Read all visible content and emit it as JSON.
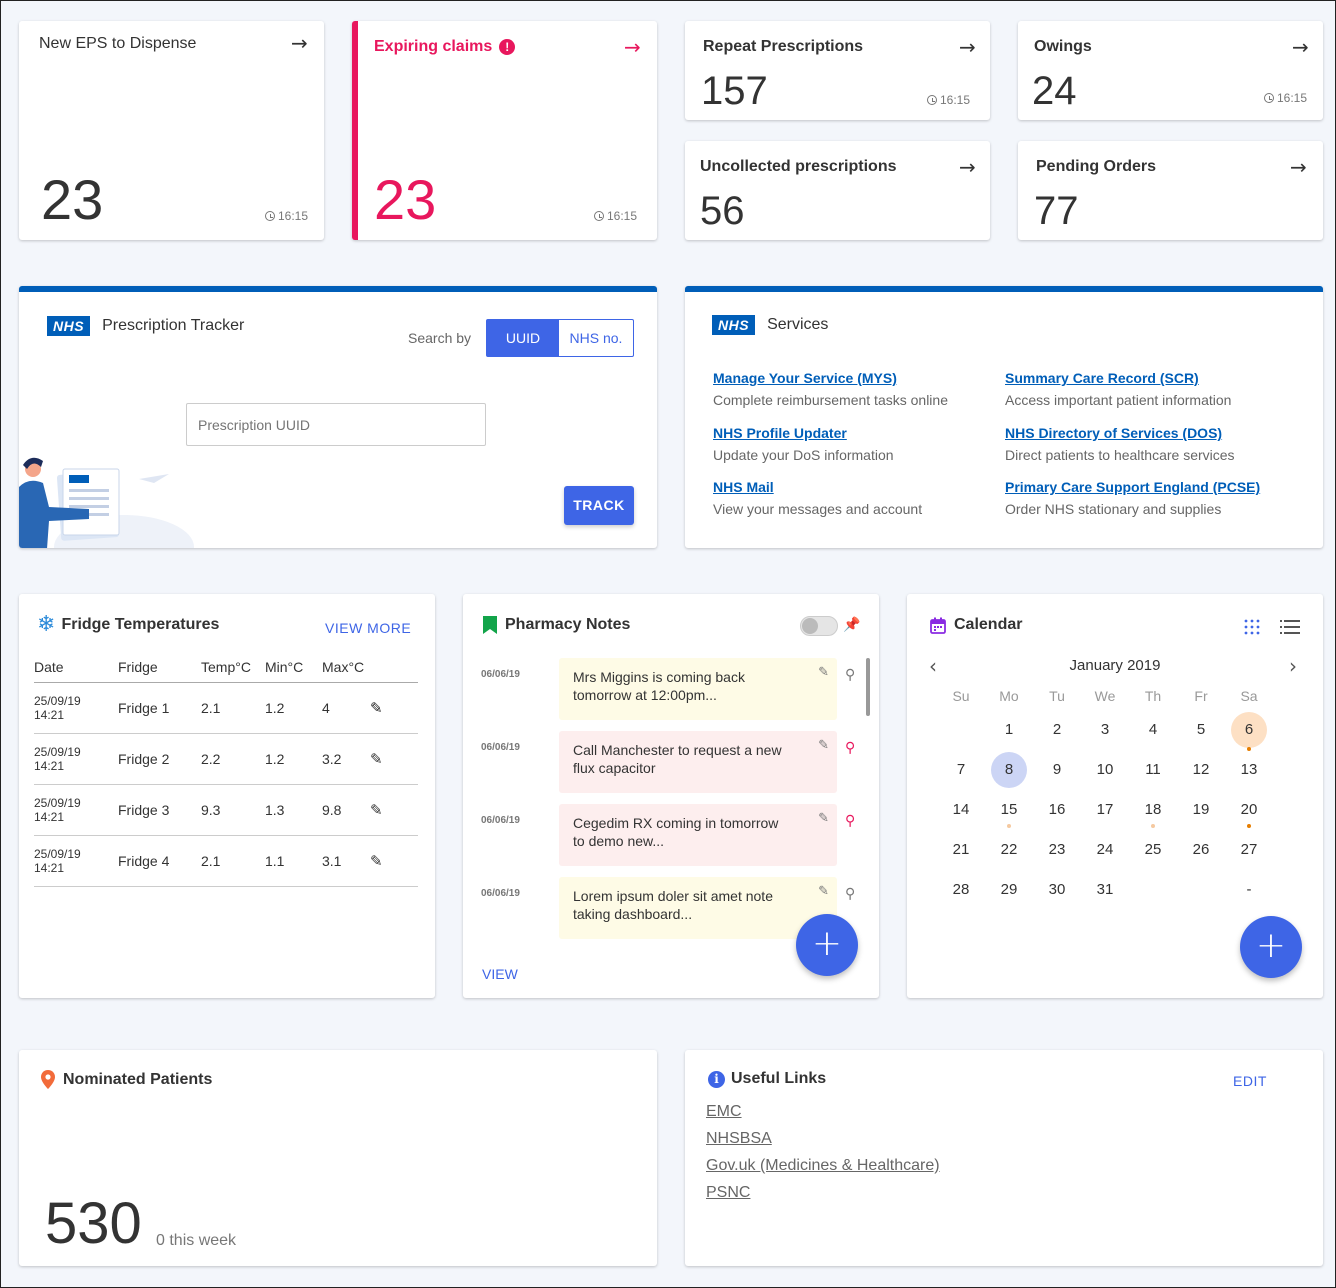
{
  "stats": {
    "eps": {
      "title": "New EPS to Dispense",
      "value": "23",
      "time": "16:15"
    },
    "expiring": {
      "title": "Expiring claims",
      "value": "23",
      "time": "16:15"
    },
    "repeat": {
      "title": "Repeat Prescriptions",
      "value": "157",
      "time": "16:15"
    },
    "owings": {
      "title": "Owings",
      "value": "24",
      "time": "16:15"
    },
    "uncollected": {
      "title": "Uncollected prescriptions",
      "value": "56"
    },
    "pending": {
      "title": "Pending Orders",
      "value": "77"
    }
  },
  "tracker": {
    "logo": "NHS",
    "title": "Prescription Tracker",
    "search_by": "Search by",
    "toggle": [
      "UUID",
      "NHS no."
    ],
    "placeholder": "Prescription UUID",
    "track_label": "TRACK"
  },
  "services": {
    "logo": "NHS",
    "title": "Services",
    "items": [
      {
        "link": "Manage Your Service (MYS)",
        "desc": "Complete reimbursement tasks online"
      },
      {
        "link": "Summary Care Record (SCR)",
        "desc": "Access important patient information"
      },
      {
        "link": "NHS Profile Updater",
        "desc": "Update your DoS information"
      },
      {
        "link": "NHS Directory of Services (DOS)",
        "desc": "Direct patients to healthcare services"
      },
      {
        "link": "NHS Mail",
        "desc": "View your messages and account"
      },
      {
        "link": "Primary Care Support England (PCSE)",
        "desc": "Order NHS stationary and supplies"
      }
    ]
  },
  "fridge": {
    "title": "Fridge Temperatures",
    "view_more": "VIEW MORE",
    "columns": [
      "Date",
      "Fridge",
      "Temp°C",
      "Min°C",
      "Max°C"
    ],
    "rows": [
      {
        "date": "25/09/19",
        "time": "14:21",
        "fridge": "Fridge 1",
        "temp": "2.1",
        "min": "1.2",
        "max": "4"
      },
      {
        "date": "25/09/19",
        "time": "14:21",
        "fridge": "Fridge 2",
        "temp": "2.2",
        "min": "1.2",
        "max": "3.2"
      },
      {
        "date": "25/09/19",
        "time": "14:21",
        "fridge": "Fridge 3",
        "temp": "9.3",
        "min": "1.3",
        "max": "9.8"
      },
      {
        "date": "25/09/19",
        "time": "14:21",
        "fridge": "Fridge 4",
        "temp": "2.1",
        "min": "1.1",
        "max": "3.1"
      }
    ]
  },
  "notes": {
    "title": "Pharmacy Notes",
    "view": "VIEW",
    "items": [
      {
        "date": "06/06/19",
        "text": "Mrs Miggins is coming back tomorrow at 12:00pm...",
        "color": "#fefbe6",
        "pinned": false
      },
      {
        "date": "06/06/19",
        "text": "Call Manchester to request a new flux capacitor",
        "color": "#fdeeee",
        "pinned": true
      },
      {
        "date": "06/06/19",
        "text": "Cegedim RX coming in tomorrow to demo new...",
        "color": "#fdeeee",
        "pinned": true
      },
      {
        "date": "06/06/19",
        "text": "Lorem ipsum doler sit amet note taking dashboard...",
        "color": "#fefbe6",
        "pinned": false
      }
    ]
  },
  "calendar": {
    "title": "Calendar",
    "month": "January 2019",
    "weekdays": [
      "Su",
      "Mo",
      "Tu",
      "We",
      "Th",
      "Fr",
      "Sa"
    ],
    "weeks": [
      [
        "",
        "1",
        "2",
        "3",
        "4",
        "5",
        "6"
      ],
      [
        "7",
        "8",
        "9",
        "10",
        "11",
        "12",
        "13"
      ],
      [
        "14",
        "15",
        "16",
        "17",
        "18",
        "19",
        "20"
      ],
      [
        "21",
        "22",
        "23",
        "24",
        "25",
        "26",
        "27"
      ],
      [
        "28",
        "29",
        "30",
        "31",
        "",
        "",
        "-"
      ]
    ]
  },
  "nominated": {
    "title": "Nominated Patients",
    "value": "530",
    "sub": "0 this week"
  },
  "useful": {
    "title": "Useful Links",
    "edit": "EDIT",
    "links": [
      "EMC",
      "NHSBSA",
      "Gov.uk (Medicines & Healthcare)",
      "PSNC"
    ]
  },
  "colors": {
    "accent": "#3e65e6",
    "alert": "#e8175d",
    "nhs": "#005eb8"
  }
}
